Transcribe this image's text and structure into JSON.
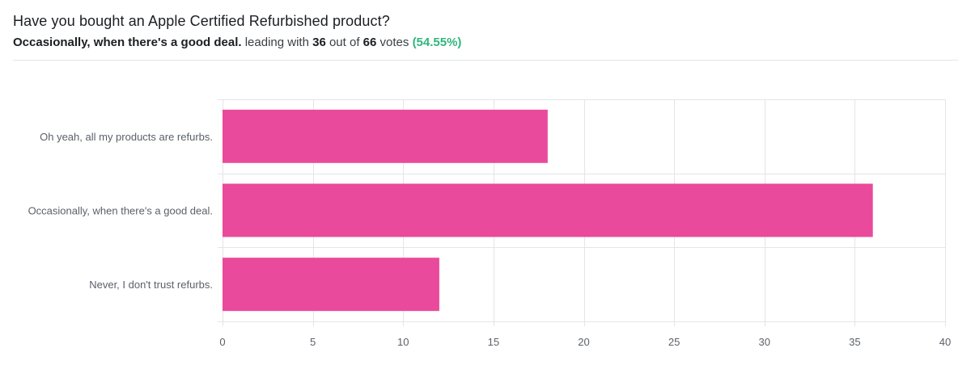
{
  "header": {
    "title": "Have you bought an Apple Certified Refurbished product?",
    "leader_label": "Occasionally, when there's a good deal.",
    "leading_with_text": "leading with",
    "leader_votes": "36",
    "out_of_text": "out of",
    "total_votes": "66",
    "votes_text": "votes",
    "leader_percent": "(54.55%)"
  },
  "colors": {
    "bar": "#ea4a9b",
    "grid": "#e3e5e8",
    "axis_text": "#5b6068",
    "percent": "#2fb67c"
  },
  "chart_data": {
    "type": "bar",
    "orientation": "horizontal",
    "title": "Have you bought an Apple Certified Refurbished product?",
    "categories": [
      "Oh yeah, all my products are refurbs.",
      "Occasionally, when there's a good deal.",
      "Never, I don't trust refurbs."
    ],
    "values": [
      18,
      36,
      12
    ],
    "xlim": [
      0,
      40
    ],
    "xticks": [
      "0",
      "5",
      "10",
      "15",
      "20",
      "25",
      "30",
      "35",
      "40"
    ],
    "xlabel": "",
    "ylabel": "",
    "grid": true,
    "legend": "none"
  }
}
